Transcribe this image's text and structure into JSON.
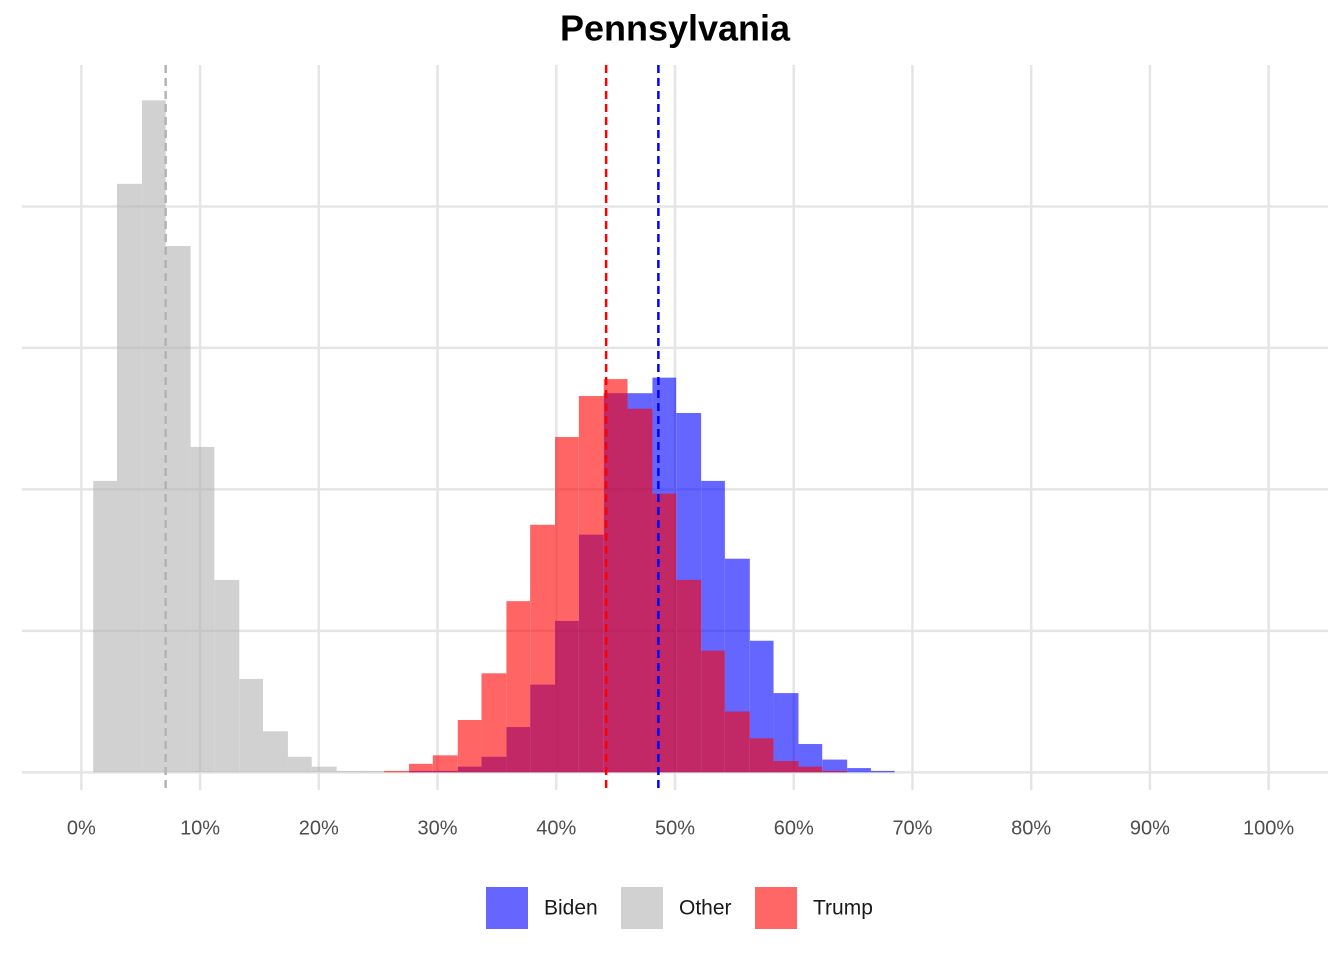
{
  "chart_data": {
    "type": "histogram",
    "title": "Pennsylvania",
    "xlim": [
      -5,
      105
    ],
    "ylim": [
      -12.5,
      500
    ],
    "xticks": [
      {
        "value": 0,
        "label": "0%"
      },
      {
        "value": 10,
        "label": "10%"
      },
      {
        "value": 20,
        "label": "20%"
      },
      {
        "value": 30,
        "label": "30%"
      },
      {
        "value": 40,
        "label": "40%"
      },
      {
        "value": 50,
        "label": "50%"
      },
      {
        "value": 60,
        "label": "60%"
      },
      {
        "value": 70,
        "label": "70%"
      },
      {
        "value": 80,
        "label": "80%"
      },
      {
        "value": 90,
        "label": "90%"
      },
      {
        "value": 100,
        "label": "100%"
      }
    ],
    "yticks": [
      0,
      100,
      200,
      300,
      400
    ],
    "grid": true,
    "legend": "bottom",
    "opacity": 0.6,
    "series": [
      {
        "name": "Biden",
        "color": "#0000ff",
        "mean": 48.6,
        "bins": [
          27.6,
          29.6,
          31.7,
          33.7,
          35.8,
          37.8,
          39.9,
          41.9,
          44.0,
          46.0,
          48.1,
          50.1,
          52.2,
          54.2,
          56.3,
          58.3,
          60.4,
          62.4,
          64.5,
          66.5,
          68.5
        ],
        "values": [
          1,
          1,
          4,
          11,
          32,
          62,
          107,
          168,
          268,
          268,
          279,
          254,
          206,
          151,
          93,
          56,
          20,
          9,
          3,
          1
        ]
      },
      {
        "name": "Other",
        "color": "#b3b3b3",
        "mean": 7.1,
        "bins": [
          1.0,
          3.0,
          5.1,
          7.1,
          9.2,
          11.2,
          13.3,
          15.3,
          17.4,
          19.4,
          21.5,
          23.5,
          25.5
        ],
        "values": [
          206,
          416,
          475,
          372,
          230,
          136,
          66,
          29,
          11,
          4,
          1,
          1
        ]
      },
      {
        "name": "Trump",
        "color": "#ff0000",
        "mean": 44.2,
        "bins": [
          25.5,
          27.6,
          29.6,
          31.7,
          33.7,
          35.8,
          37.8,
          39.9,
          41.9,
          44.0,
          46.0,
          48.1,
          50.1,
          52.2,
          54.2,
          56.3,
          58.3,
          60.4,
          62.4,
          64.5
        ],
        "values": [
          1,
          6,
          12,
          37,
          70,
          121,
          175,
          237,
          266,
          278,
          257,
          197,
          136,
          86,
          43,
          24,
          8,
          4,
          1
        ]
      }
    ]
  }
}
